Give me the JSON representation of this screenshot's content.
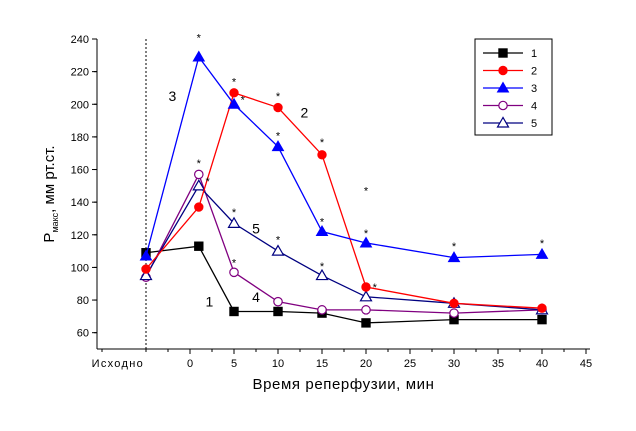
{
  "chart_data": {
    "type": "line",
    "xlabel": "Время реперфузии, мин",
    "ylabel_main": "P",
    "ylabel_sub": "макс",
    "ylabel_rest": ", мм рт.ст.",
    "ylim": [
      50,
      240
    ],
    "y_ticks": [
      60,
      80,
      100,
      120,
      140,
      160,
      180,
      200,
      220,
      240
    ],
    "xlim": [
      -10,
      45
    ],
    "x_ticks": [
      0,
      5,
      10,
      15,
      20,
      25,
      30,
      35,
      40,
      45
    ],
    "baseline_label": "Исходно",
    "baseline_x": -5,
    "grid": false,
    "legend_position": "top-right",
    "series": [
      {
        "name": "1",
        "color": "#000000",
        "marker": "square-filled",
        "points": [
          [
            -5,
            109
          ],
          [
            1,
            113
          ],
          [
            5,
            73
          ],
          [
            10,
            73
          ],
          [
            15,
            72
          ],
          [
            20,
            66
          ],
          [
            30,
            68
          ],
          [
            40,
            68
          ]
        ]
      },
      {
        "name": "2",
        "color": "#ff0000",
        "marker": "circle-filled",
        "points": [
          [
            -5,
            99
          ],
          [
            1,
            137
          ],
          [
            5,
            207
          ],
          [
            10,
            198
          ],
          [
            15,
            169
          ],
          [
            20,
            88
          ],
          [
            30,
            78
          ],
          [
            40,
            75
          ]
        ]
      },
      {
        "name": "3",
        "color": "#0000ff",
        "marker": "triangle-filled",
        "points": [
          [
            -5,
            107
          ],
          [
            1,
            229
          ],
          [
            5,
            200
          ],
          [
            10,
            174
          ],
          [
            15,
            122
          ],
          [
            20,
            115
          ],
          [
            30,
            106
          ],
          [
            40,
            108
          ]
        ]
      },
      {
        "name": "4",
        "color": "#800080",
        "marker": "circle-open",
        "points": [
          [
            -5,
            94
          ],
          [
            1,
            157
          ],
          [
            5,
            97
          ],
          [
            10,
            79
          ],
          [
            15,
            74
          ],
          [
            20,
            74
          ],
          [
            30,
            72
          ],
          [
            40,
            74
          ]
        ]
      },
      {
        "name": "5",
        "color": "#000080",
        "marker": "triangle-open",
        "points": [
          [
            -5,
            95
          ],
          [
            1,
            150
          ],
          [
            5,
            127
          ],
          [
            10,
            110
          ],
          [
            15,
            95
          ],
          [
            20,
            82
          ],
          [
            30,
            78
          ],
          [
            40,
            74
          ]
        ]
      }
    ],
    "significance_marks": {
      "symbol": "*",
      "points": [
        [
          1,
          241
        ],
        [
          5,
          214
        ],
        [
          10,
          205
        ],
        [
          15,
          177
        ],
        [
          20,
          147
        ],
        [
          40,
          115
        ],
        [
          1,
          164
        ],
        [
          6,
          203
        ],
        [
          10,
          181
        ],
        [
          15,
          128
        ],
        [
          20,
          121
        ],
        [
          30,
          113
        ],
        [
          2,
          153
        ],
        [
          5,
          134
        ],
        [
          10,
          117
        ],
        [
          15,
          101
        ],
        [
          21,
          88
        ],
        [
          5,
          103
        ]
      ]
    },
    "curve_number_labels": [
      {
        "text": "3",
        "x": -2,
        "y": 205
      },
      {
        "text": "2",
        "x": 13,
        "y": 195
      },
      {
        "text": "5",
        "x": 7.5,
        "y": 124
      },
      {
        "text": "1",
        "x": 2.2,
        "y": 79
      },
      {
        "text": "4",
        "x": 7.5,
        "y": 82
      }
    ]
  }
}
